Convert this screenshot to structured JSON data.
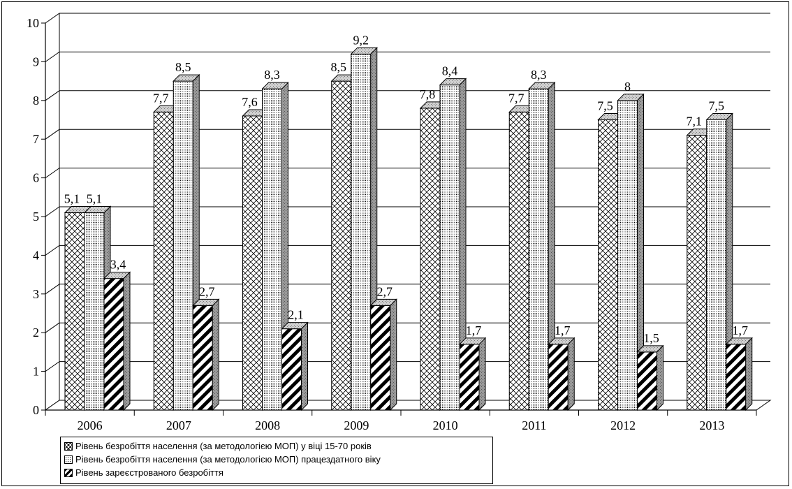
{
  "chart_data": {
    "type": "bar",
    "title": "",
    "xlabel": "",
    "ylabel": "",
    "categories": [
      "2006",
      "2007",
      "2008",
      "2009",
      "2010",
      "2011",
      "2012",
      "2013"
    ],
    "series": [
      {
        "name": "Рівень безробіття населення (за методологією МОП) у віці 15-70 років",
        "values": [
          5.1,
          7.7,
          7.6,
          8.5,
          7.8,
          7.7,
          7.5,
          7.1
        ],
        "labels": [
          "5,1",
          "7,7",
          "7,6",
          "8,5",
          "7,8",
          "7,7",
          "7,5",
          "7,1"
        ],
        "pattern": "crosshatch"
      },
      {
        "name": "Рівень безробіття населення (за методологією МОП) працездатного віку",
        "values": [
          5.1,
          8.5,
          8.3,
          9.2,
          8.4,
          8.3,
          8.0,
          7.5
        ],
        "labels": [
          "5,1",
          "8,5",
          "8,3",
          "9,2",
          "8,4",
          "8,3",
          "8",
          "7,5"
        ],
        "pattern": "dotted-grid"
      },
      {
        "name": "Рівень зареєстрованого безробіття",
        "values": [
          3.4,
          2.7,
          2.1,
          2.7,
          1.7,
          1.7,
          1.5,
          1.7
        ],
        "labels": [
          "3,4",
          "2,7",
          "2,1",
          "2,7",
          "1,7",
          "1,7",
          "1,5",
          "1,7"
        ],
        "pattern": "diagonal-stripes"
      }
    ],
    "ylim": [
      0,
      10
    ],
    "yticks": [
      "0",
      "1",
      "2",
      "3",
      "4",
      "5",
      "6",
      "7",
      "8",
      "9",
      "10"
    ],
    "grid": true,
    "legend_position": "bottom-left",
    "style": "3d-clustered-bar",
    "colors": {
      "bar_fill": "#ffffff",
      "bar_side": "#9a9a9a",
      "bar_top": "#c8c8c8",
      "grid": "#000000",
      "axis": "#000000"
    }
  }
}
